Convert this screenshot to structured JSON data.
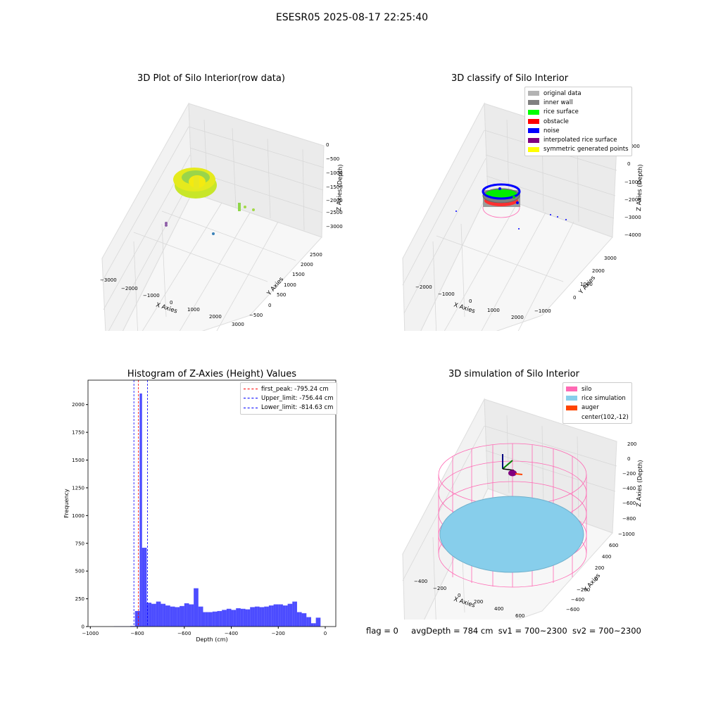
{
  "figure": {
    "suptitle": "ESESR05 2025-08-17 22:25:40",
    "footer": {
      "flag": "flag = 0",
      "avg_depth": "avgDepth = 784 cm",
      "sv1": "sv1 = 700~2300",
      "sv2": "sv2 = 700~2300"
    }
  },
  "plot1": {
    "title": "3D Plot of Silo Interior(row data)",
    "xlabel": "X Axies",
    "ylabel": "Y Axies",
    "zlabel": "Z Axies (Depth)",
    "xticks": [
      "−3000",
      "−2000",
      "−1000",
      "0",
      "1000",
      "2000",
      "3000"
    ],
    "yticks": [
      "−500",
      "0",
      "500",
      "1000",
      "1500",
      "2000",
      "2500"
    ],
    "zticks": [
      "0",
      "−500",
      "−1000",
      "−1500",
      "−2000",
      "−2500",
      "−3000"
    ]
  },
  "plot2": {
    "title": "3D classify of Silo Interior",
    "xlabel": "X Axies",
    "ylabel": "Y Axies",
    "zlabel": "Z Axies (Depth)",
    "xticks": [
      "−2000",
      "−1000",
      "0",
      "1000",
      "2000"
    ],
    "yticks": [
      "−1000",
      "0",
      "1000",
      "2000",
      "3000"
    ],
    "zticks": [
      "1000",
      "0",
      "−1000",
      "−2000",
      "−3000",
      "−4000"
    ],
    "legend": [
      {
        "label": "original data",
        "color": "#b3b3b3"
      },
      {
        "label": "inner wall",
        "color": "#808080"
      },
      {
        "label": "rice surface",
        "color": "#00ff00"
      },
      {
        "label": "obstacle",
        "color": "#ff0000"
      },
      {
        "label": "noise",
        "color": "#0000ff"
      },
      {
        "label": "interpolated rice surface",
        "color": "#800080"
      },
      {
        "label": "symmetric generated points",
        "color": "#ffff00"
      }
    ]
  },
  "plot4": {
    "title": "3D simulation of Silo Interior",
    "xlabel": "X Axies",
    "ylabel": "Y Axies",
    "zlabel": "Z Axies (Depth)",
    "xticks": [
      "−400",
      "−200",
      "0",
      "200",
      "400",
      "600"
    ],
    "yticks": [
      "−600",
      "−400",
      "−200",
      "0",
      "200",
      "400",
      "600"
    ],
    "zticks": [
      "200",
      "0",
      "−200",
      "−400",
      "−600",
      "−800",
      "−1000"
    ],
    "legend": [
      {
        "label": "silo",
        "color": "#ff69b4"
      },
      {
        "label": "rice simulation",
        "color": "#87ceeb"
      },
      {
        "label": "auger",
        "color": "#ff4500"
      },
      {
        "label": "center(102,-12)",
        "color": ""
      }
    ]
  },
  "chart_data": [
    {
      "type": "bar",
      "title": "Histogram of Z-Axies (Height) Values",
      "xlabel": "Depth (cm)",
      "ylabel": "Frequency",
      "xlim": [
        -1010,
        45
      ],
      "ylim": [
        0,
        2220
      ],
      "xticks": [
        -1000,
        -800,
        -600,
        -400,
        -200,
        0
      ],
      "yticks": [
        0,
        250,
        500,
        750,
        1000,
        1250,
        1500,
        1750,
        2000
      ],
      "bin_width": 10,
      "bin_starts": [
        -900,
        -890,
        -880,
        -870,
        -860,
        -850,
        -840,
        -830,
        -820,
        -810,
        -800,
        -790,
        -780,
        -770,
        -760,
        -750,
        -740,
        -730,
        -720,
        -710,
        -700,
        -690,
        -680,
        -670,
        -660,
        -650,
        -640,
        -630,
        -620,
        -610,
        -600,
        -590,
        -580,
        -570,
        -560,
        -550,
        -540,
        -530,
        -520,
        -510,
        -500,
        -490,
        -480,
        -470,
        -460,
        -450,
        -440,
        -430,
        -420,
        -410,
        -400,
        -390,
        -380,
        -370,
        -360,
        -350,
        -340,
        -330,
        -320,
        -310,
        -300,
        -290,
        -280,
        -270,
        -260,
        -250,
        -240,
        -230,
        -220,
        -210,
        -200,
        -190,
        -180,
        -170,
        -160,
        -150,
        -140,
        -130,
        -120,
        -110,
        -100,
        -90,
        -80,
        -70,
        -60,
        -50,
        -40,
        -30,
        -20,
        -10
      ],
      "values": [
        2,
        2,
        2,
        2,
        2,
        2,
        2,
        5,
        5,
        140,
        140,
        2100,
        710,
        710,
        215,
        215,
        205,
        205,
        225,
        225,
        205,
        205,
        190,
        190,
        180,
        180,
        175,
        175,
        185,
        185,
        210,
        210,
        200,
        200,
        345,
        345,
        180,
        180,
        130,
        130,
        130,
        130,
        135,
        135,
        140,
        140,
        150,
        150,
        160,
        160,
        150,
        150,
        165,
        165,
        160,
        160,
        155,
        155,
        175,
        175,
        180,
        180,
        175,
        175,
        180,
        180,
        190,
        190,
        200,
        200,
        200,
        200,
        190,
        190,
        205,
        205,
        225,
        225,
        130,
        130,
        120,
        120,
        85,
        85,
        30,
        30,
        80,
        80,
        0,
        0
      ],
      "color": "#0000ff",
      "reference_lines": [
        {
          "label": "first_peak: -795.24 cm",
          "x": -795.24,
          "color": "#ff0000"
        },
        {
          "label": "Upper_limit: -756.44 cm",
          "x": -756.44,
          "color": "#0000ff"
        },
        {
          "label": "Lower_limit: -814.63 cm",
          "x": -814.63,
          "color": "#0000ff"
        }
      ]
    }
  ]
}
